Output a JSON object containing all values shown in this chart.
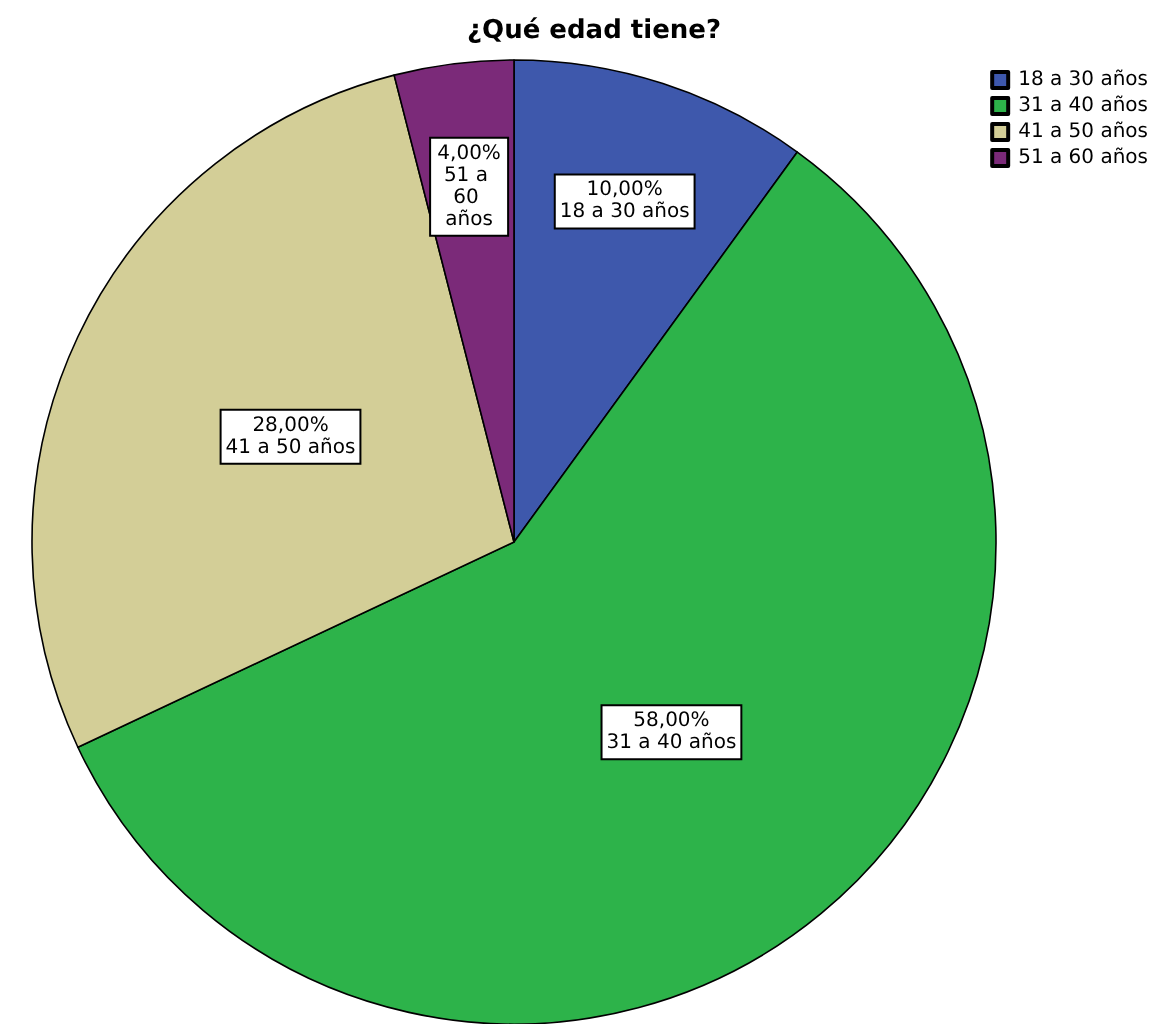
{
  "chart_data": {
    "type": "pie",
    "title": "¿Qué edad tiene?",
    "categories": [
      "18 a 30 años",
      "31 a 40 años",
      "41 a 50 años",
      "51 a 60 años"
    ],
    "values": [
      10,
      58,
      28,
      4
    ],
    "colors": [
      "#3e58ac",
      "#2db34a",
      "#d3ce97",
      "#7b2a79"
    ],
    "value_labels": [
      "10,00%",
      "58,00%",
      "28,00%",
      "4,00%"
    ],
    "legend": "top right"
  }
}
